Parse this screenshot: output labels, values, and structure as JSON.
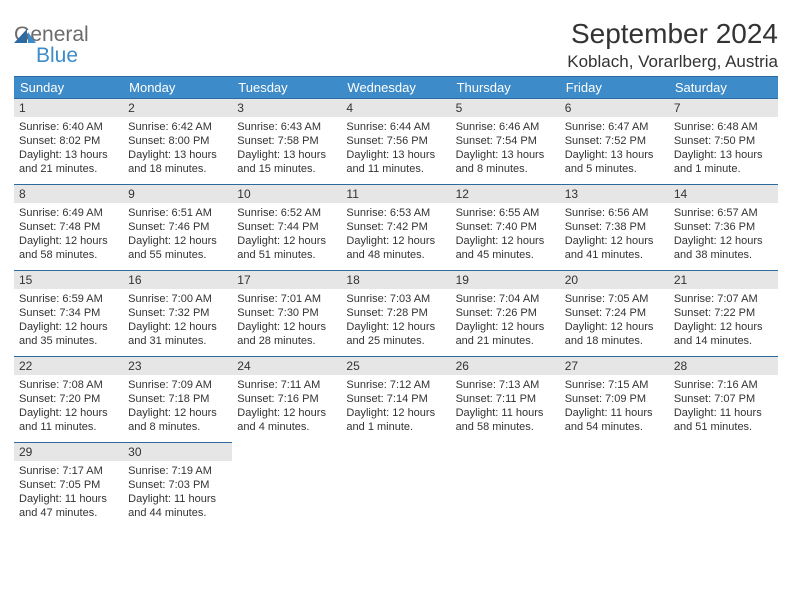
{
  "logo": {
    "text1": "General",
    "text2": "Blue"
  },
  "title": "September 2024",
  "location": "Koblach, Vorarlberg, Austria",
  "colors": {
    "header_bg": "#3e8bc9",
    "header_border": "#2d6aa0",
    "daynum_bg": "#e6e6e6",
    "text": "#333333",
    "logo_gray": "#6b6b6b",
    "logo_blue": "#3e8bc9"
  },
  "weekdays": [
    "Sunday",
    "Monday",
    "Tuesday",
    "Wednesday",
    "Thursday",
    "Friday",
    "Saturday"
  ],
  "weeks": [
    [
      {
        "n": "1",
        "sr": "6:40 AM",
        "ss": "8:02 PM",
        "dl": "13 hours and 21 minutes."
      },
      {
        "n": "2",
        "sr": "6:42 AM",
        "ss": "8:00 PM",
        "dl": "13 hours and 18 minutes."
      },
      {
        "n": "3",
        "sr": "6:43 AM",
        "ss": "7:58 PM",
        "dl": "13 hours and 15 minutes."
      },
      {
        "n": "4",
        "sr": "6:44 AM",
        "ss": "7:56 PM",
        "dl": "13 hours and 11 minutes."
      },
      {
        "n": "5",
        "sr": "6:46 AM",
        "ss": "7:54 PM",
        "dl": "13 hours and 8 minutes."
      },
      {
        "n": "6",
        "sr": "6:47 AM",
        "ss": "7:52 PM",
        "dl": "13 hours and 5 minutes."
      },
      {
        "n": "7",
        "sr": "6:48 AM",
        "ss": "7:50 PM",
        "dl": "13 hours and 1 minute."
      }
    ],
    [
      {
        "n": "8",
        "sr": "6:49 AM",
        "ss": "7:48 PM",
        "dl": "12 hours and 58 minutes."
      },
      {
        "n": "9",
        "sr": "6:51 AM",
        "ss": "7:46 PM",
        "dl": "12 hours and 55 minutes."
      },
      {
        "n": "10",
        "sr": "6:52 AM",
        "ss": "7:44 PM",
        "dl": "12 hours and 51 minutes."
      },
      {
        "n": "11",
        "sr": "6:53 AM",
        "ss": "7:42 PM",
        "dl": "12 hours and 48 minutes."
      },
      {
        "n": "12",
        "sr": "6:55 AM",
        "ss": "7:40 PM",
        "dl": "12 hours and 45 minutes."
      },
      {
        "n": "13",
        "sr": "6:56 AM",
        "ss": "7:38 PM",
        "dl": "12 hours and 41 minutes."
      },
      {
        "n": "14",
        "sr": "6:57 AM",
        "ss": "7:36 PM",
        "dl": "12 hours and 38 minutes."
      }
    ],
    [
      {
        "n": "15",
        "sr": "6:59 AM",
        "ss": "7:34 PM",
        "dl": "12 hours and 35 minutes."
      },
      {
        "n": "16",
        "sr": "7:00 AM",
        "ss": "7:32 PM",
        "dl": "12 hours and 31 minutes."
      },
      {
        "n": "17",
        "sr": "7:01 AM",
        "ss": "7:30 PM",
        "dl": "12 hours and 28 minutes."
      },
      {
        "n": "18",
        "sr": "7:03 AM",
        "ss": "7:28 PM",
        "dl": "12 hours and 25 minutes."
      },
      {
        "n": "19",
        "sr": "7:04 AM",
        "ss": "7:26 PM",
        "dl": "12 hours and 21 minutes."
      },
      {
        "n": "20",
        "sr": "7:05 AM",
        "ss": "7:24 PM",
        "dl": "12 hours and 18 minutes."
      },
      {
        "n": "21",
        "sr": "7:07 AM",
        "ss": "7:22 PM",
        "dl": "12 hours and 14 minutes."
      }
    ],
    [
      {
        "n": "22",
        "sr": "7:08 AM",
        "ss": "7:20 PM",
        "dl": "12 hours and 11 minutes."
      },
      {
        "n": "23",
        "sr": "7:09 AM",
        "ss": "7:18 PM",
        "dl": "12 hours and 8 minutes."
      },
      {
        "n": "24",
        "sr": "7:11 AM",
        "ss": "7:16 PM",
        "dl": "12 hours and 4 minutes."
      },
      {
        "n": "25",
        "sr": "7:12 AM",
        "ss": "7:14 PM",
        "dl": "12 hours and 1 minute."
      },
      {
        "n": "26",
        "sr": "7:13 AM",
        "ss": "7:11 PM",
        "dl": "11 hours and 58 minutes."
      },
      {
        "n": "27",
        "sr": "7:15 AM",
        "ss": "7:09 PM",
        "dl": "11 hours and 54 minutes."
      },
      {
        "n": "28",
        "sr": "7:16 AM",
        "ss": "7:07 PM",
        "dl": "11 hours and 51 minutes."
      }
    ],
    [
      {
        "n": "29",
        "sr": "7:17 AM",
        "ss": "7:05 PM",
        "dl": "11 hours and 47 minutes."
      },
      {
        "n": "30",
        "sr": "7:19 AM",
        "ss": "7:03 PM",
        "dl": "11 hours and 44 minutes."
      },
      null,
      null,
      null,
      null,
      null
    ]
  ],
  "labels": {
    "sunrise": "Sunrise:",
    "sunset": "Sunset:",
    "daylight": "Daylight:"
  }
}
